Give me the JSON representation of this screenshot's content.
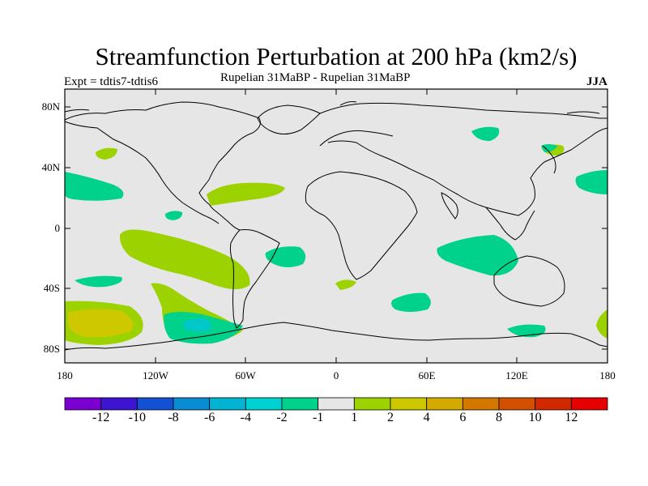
{
  "title": "Streamfunction Perturbation at 200 hPa (km2/s)",
  "left_subtitle": "Expt = tdtis7-tdtis6",
  "center_subtitle": "Rupelian  31MaBP - Rupelian  31MaBP",
  "right_subtitle": "JJA",
  "colors": {
    "land_sea_bg": "#e6e6e6",
    "coast": "#000000",
    "c_neg2": "#00d28c",
    "c_neg1_to_1": "#e6e6e6",
    "c_1": "#9bd200",
    "c_2": "#cdc800",
    "c_neg4": "#00c8c8"
  },
  "lat_labels": [
    "80N",
    "40N",
    "0",
    "40S",
    "80S"
  ],
  "lon_labels": [
    "180",
    "120W",
    "60W",
    "0",
    "60E",
    "120E",
    "180"
  ],
  "colorbar": {
    "colors": [
      "#7a00d2",
      "#3c14d2",
      "#1450d2",
      "#0a8cd2",
      "#00b4d2",
      "#00d2d2",
      "#00d28c",
      "#e6e6e6",
      "#9bd200",
      "#cdc800",
      "#d2aa00",
      "#d27800",
      "#d25000",
      "#d22800",
      "#e60000"
    ],
    "labels": [
      "-12",
      "-10",
      "-8",
      "-6",
      "-4",
      "-2",
      "-1",
      "1",
      "2",
      "4",
      "6",
      "8",
      "10",
      "12"
    ]
  }
}
